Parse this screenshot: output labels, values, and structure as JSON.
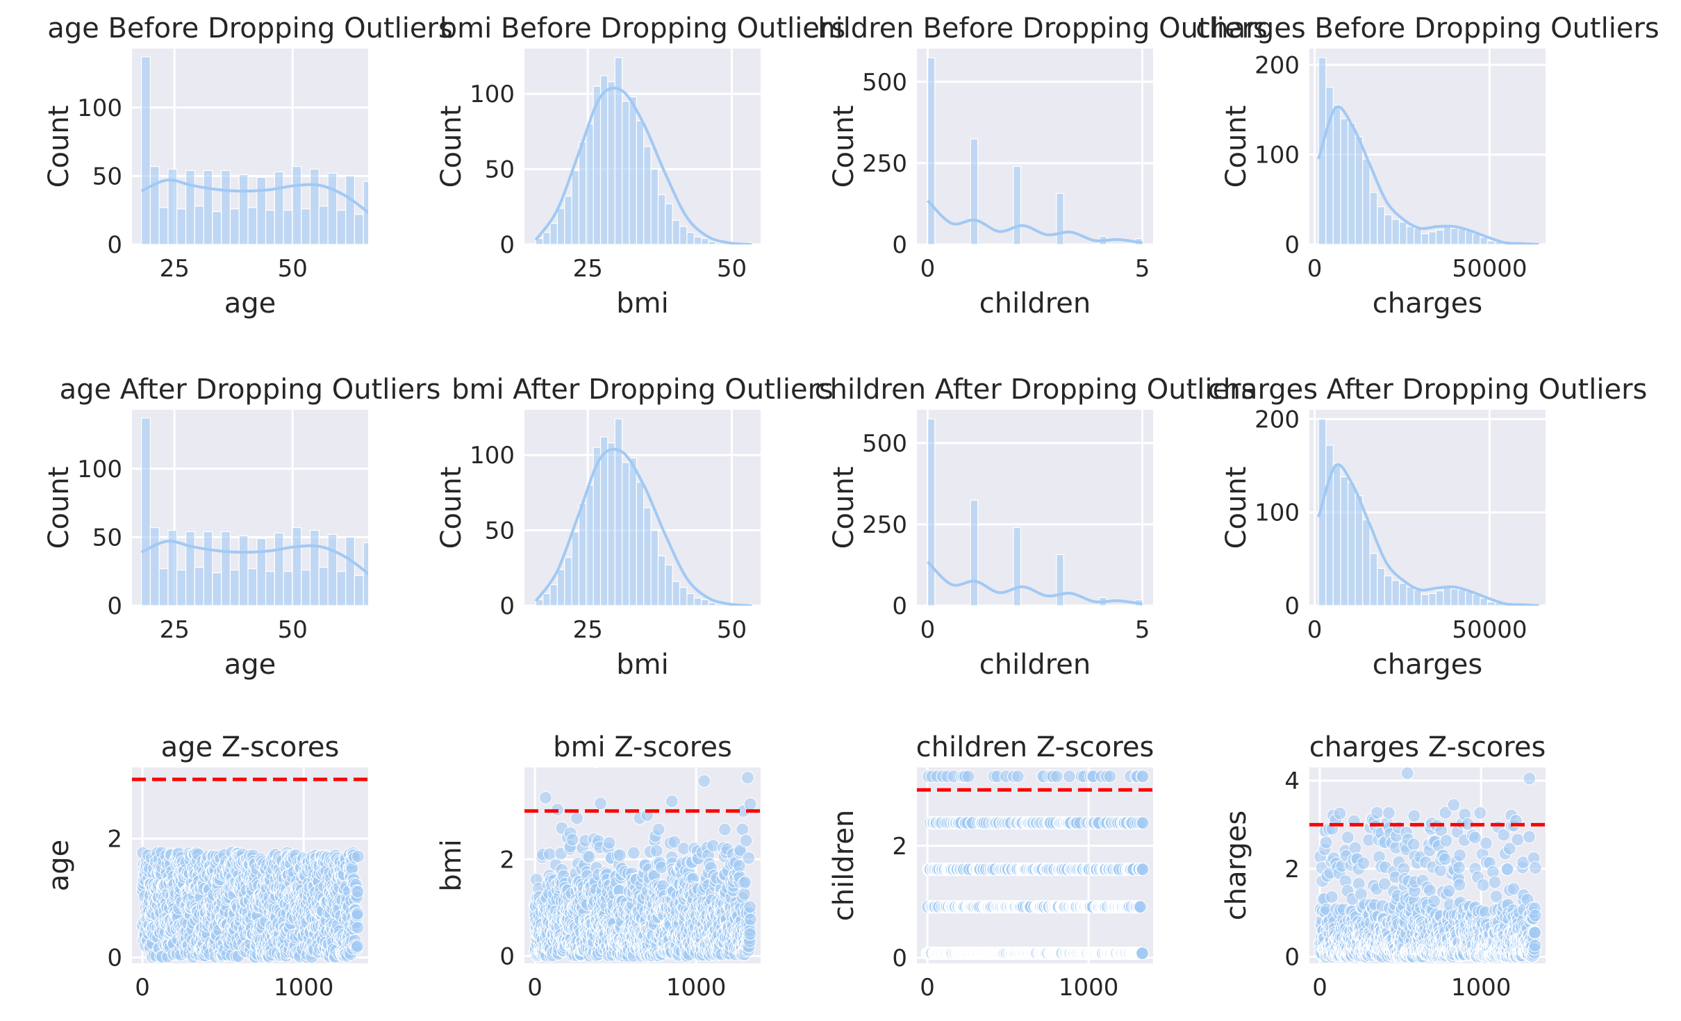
{
  "colors": {
    "panel_bg": "#EAEAF2",
    "grid": "#FFFFFF",
    "bar_fill": "#A1C9F4",
    "kde_line": "#A1C9F4",
    "scatter_fill": "#A1C9F4",
    "threshold": "#FF0000",
    "text": "#262626"
  },
  "chart_data": [
    {
      "type": "bar",
      "title": "age Before Dropping Outliers",
      "xlabel": "age",
      "ylabel": "Count",
      "xlim": [
        16,
        66
      ],
      "ylim": [
        0,
        143
      ],
      "xticks": [
        25,
        50
      ],
      "yticks": [
        0,
        50,
        100
      ],
      "bin_start": 18,
      "bin_width": 1.88,
      "values": [
        137,
        57,
        27,
        55,
        26,
        54,
        28,
        54,
        24,
        54,
        26,
        51,
        27,
        49,
        25,
        53,
        25,
        57,
        26,
        55,
        28,
        52,
        25,
        50,
        22,
        46
      ],
      "kde": [
        39,
        47,
        43,
        40,
        39,
        40,
        43,
        43,
        35,
        21
      ]
    },
    {
      "type": "bar",
      "title": "bmi Before Dropping Outliers",
      "xlabel": "bmi",
      "ylabel": "Count",
      "xlim": [
        14,
        55
      ],
      "ylim": [
        0,
        130
      ],
      "xticks": [
        25,
        50
      ],
      "yticks": [
        0,
        50,
        100
      ],
      "bin_start": 15.96,
      "bin_width": 1.25,
      "values": [
        4,
        8,
        14,
        24,
        32,
        49,
        68,
        80,
        105,
        112,
        108,
        124,
        95,
        98,
        82,
        65,
        50,
        33,
        27,
        16,
        12,
        8,
        5,
        4,
        2,
        1,
        1,
        0,
        1,
        1
      ],
      "kde": [
        3,
        23,
        61,
        98,
        102,
        80,
        47,
        18,
        5,
        1,
        0
      ]
    },
    {
      "type": "bar",
      "title": "children Before Dropping Outliers",
      "xlabel": "children",
      "ylabel": "Count",
      "xlim": [
        -0.25,
        5.25
      ],
      "ylim": [
        0,
        602
      ],
      "xticks": [
        0,
        5
      ],
      "yticks": [
        0,
        250,
        500
      ],
      "bin_start": 0,
      "bin_width": 0.1667,
      "values": [
        574,
        0,
        0,
        0,
        0,
        0,
        324,
        0,
        0,
        0,
        0,
        0,
        240,
        0,
        0,
        0,
        0,
        0,
        157,
        0,
        0,
        0,
        0,
        0,
        25,
        0,
        0,
        0,
        0,
        18
      ],
      "kde": [
        135,
        65,
        75,
        40,
        58,
        30,
        38,
        12,
        15,
        5
      ]
    },
    {
      "type": "bar",
      "title": "charges Before Dropping Outliers",
      "xlabel": "charges",
      "ylabel": "Count",
      "xlim": [
        -1500,
        66000
      ],
      "ylim": [
        0,
        218
      ],
      "xticks": [
        0,
        50000
      ],
      "yticks": [
        0,
        100,
        200
      ],
      "bin_start": 1122,
      "bin_width": 2100,
      "values": [
        208,
        175,
        155,
        140,
        135,
        120,
        95,
        58,
        42,
        33,
        28,
        25,
        20,
        18,
        12,
        14,
        16,
        20,
        18,
        17,
        15,
        12,
        8,
        4,
        3,
        2,
        1,
        1,
        1,
        1
      ],
      "kde": [
        95,
        152,
        132,
        90,
        48,
        28,
        18,
        20,
        20,
        15,
        8,
        2,
        1,
        0
      ]
    },
    {
      "type": "bar",
      "title": "age After Dropping Outliers",
      "xlabel": "age",
      "ylabel": "Count",
      "xlim": [
        16,
        66
      ],
      "ylim": [
        0,
        143
      ],
      "xticks": [
        25,
        50
      ],
      "yticks": [
        0,
        50,
        100
      ],
      "bin_start": 18,
      "bin_width": 1.88,
      "values": [
        137,
        57,
        27,
        55,
        26,
        54,
        28,
        54,
        24,
        54,
        26,
        51,
        27,
        49,
        25,
        53,
        25,
        57,
        26,
        55,
        28,
        52,
        25,
        50,
        22,
        46
      ],
      "kde": [
        39,
        47,
        43,
        40,
        39,
        40,
        43,
        43,
        35,
        21
      ]
    },
    {
      "type": "bar",
      "title": "bmi After Dropping Outliers",
      "xlabel": "bmi",
      "ylabel": "Count",
      "xlim": [
        14,
        55
      ],
      "ylim": [
        0,
        130
      ],
      "xticks": [
        25,
        50
      ],
      "yticks": [
        0,
        50,
        100
      ],
      "bin_start": 15.96,
      "bin_width": 1.25,
      "values": [
        4,
        8,
        14,
        24,
        32,
        49,
        68,
        80,
        105,
        112,
        108,
        124,
        95,
        98,
        82,
        65,
        50,
        33,
        27,
        16,
        12,
        8,
        5,
        4,
        2,
        1,
        1,
        0,
        1,
        1
      ],
      "kde": [
        3,
        23,
        61,
        98,
        102,
        80,
        47,
        18,
        5,
        1,
        0
      ]
    },
    {
      "type": "bar",
      "title": "children After Dropping Outliers",
      "xlabel": "children",
      "ylabel": "Count",
      "xlim": [
        -0.25,
        5.25
      ],
      "ylim": [
        0,
        602
      ],
      "xticks": [
        0,
        5
      ],
      "yticks": [
        0,
        250,
        500
      ],
      "bin_start": 0,
      "bin_width": 0.1667,
      "values": [
        574,
        0,
        0,
        0,
        0,
        0,
        324,
        0,
        0,
        0,
        0,
        0,
        240,
        0,
        0,
        0,
        0,
        0,
        157,
        0,
        0,
        0,
        0,
        0,
        25,
        0,
        0,
        0,
        0,
        18
      ],
      "kde": [
        135,
        65,
        75,
        40,
        58,
        30,
        38,
        12,
        15,
        5
      ]
    },
    {
      "type": "bar",
      "title": "charges After Dropping Outliers",
      "xlabel": "charges",
      "ylabel": "Count",
      "xlim": [
        -1500,
        66000
      ],
      "ylim": [
        0,
        210
      ],
      "xticks": [
        0,
        50000
      ],
      "yticks": [
        0,
        100,
        200
      ],
      "bin_start": 1122,
      "bin_width": 2100,
      "values": [
        200,
        172,
        152,
        138,
        132,
        118,
        92,
        56,
        40,
        32,
        27,
        24,
        20,
        17,
        12,
        13,
        16,
        20,
        18,
        17,
        15,
        12,
        8,
        4,
        3,
        2,
        1,
        1,
        1,
        1
      ],
      "kde": [
        95,
        150,
        130,
        88,
        46,
        27,
        17,
        19,
        20,
        15,
        8,
        2,
        1,
        0
      ]
    },
    {
      "type": "scatter",
      "title": "age Z-scores",
      "xlabel": "",
      "ylabel": "age",
      "xlim": [
        -65,
        1400
      ],
      "ylim": [
        -0.1,
        3.2
      ],
      "xticks": [
        0,
        1000
      ],
      "yticks": [
        0,
        2
      ],
      "threshold": 3,
      "n": 1338,
      "z_max": 1.77,
      "pattern": "dense"
    },
    {
      "type": "scatter",
      "title": "bmi Z-scores",
      "xlabel": "",
      "ylabel": "bmi",
      "xlim": [
        -65,
        1400
      ],
      "ylim": [
        -0.15,
        3.9
      ],
      "xticks": [
        0,
        1000
      ],
      "yticks": [
        0,
        2
      ],
      "threshold": 3,
      "n": 1338,
      "z_max": 3.69,
      "pattern": "normal"
    },
    {
      "type": "scatter",
      "title": "children Z-scores",
      "xlabel": "",
      "ylabel": "children",
      "xlim": [
        -65,
        1400
      ],
      "ylim": [
        -0.1,
        3.4
      ],
      "xticks": [
        0,
        1000
      ],
      "yticks": [
        0,
        2
      ],
      "threshold": 3,
      "n": 1338,
      "z_max": 3.24,
      "pattern": "levels",
      "levels": [
        0.08,
        0.91,
        1.58,
        2.41,
        3.24
      ]
    },
    {
      "type": "scatter",
      "title": "charges Z-scores",
      "xlabel": "",
      "ylabel": "charges",
      "xlim": [
        -65,
        1400
      ],
      "ylim": [
        -0.15,
        4.3
      ],
      "xticks": [
        0,
        1000
      ],
      "yticks": [
        0,
        2,
        4
      ],
      "threshold": 3,
      "n": 1338,
      "z_max": 4.17,
      "pattern": "skewed"
    }
  ]
}
